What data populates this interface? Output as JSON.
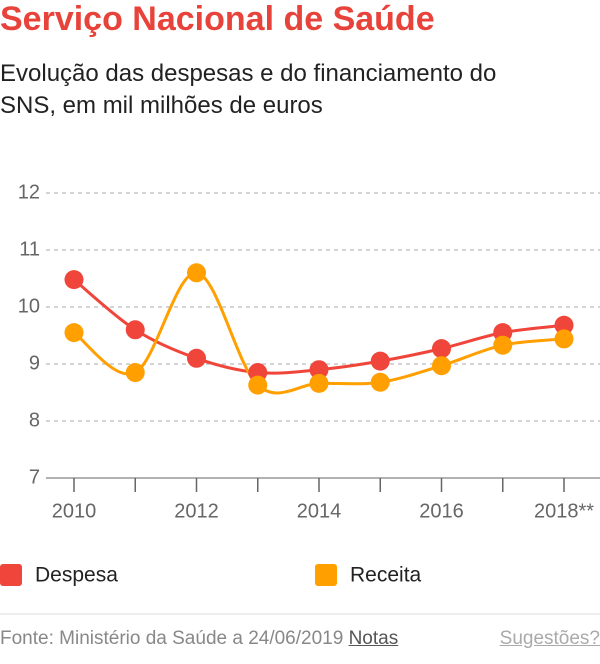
{
  "chart_data": {
    "type": "line",
    "title": "Serviço Nacional de Saúde",
    "subtitle": "Evolução das despesas e do financiamento do SNS, em mil milhões de euros",
    "categories": [
      "2010",
      null,
      "2012",
      null,
      "2014",
      null,
      "2016",
      null,
      "2018**"
    ],
    "series": [
      {
        "name": "Despesa",
        "color": "#f0453a",
        "values": [
          10.48,
          9.6,
          9.1,
          8.85,
          8.9,
          9.05,
          9.27,
          9.55,
          9.68
        ]
      },
      {
        "name": "Receita",
        "color": "#ff9f00",
        "values": [
          9.55,
          8.85,
          10.6,
          8.63,
          8.66,
          8.68,
          8.97,
          9.33,
          9.44
        ]
      }
    ],
    "ylim": [
      7,
      12
    ],
    "yticks": [
      7,
      8,
      9,
      10,
      11,
      12
    ],
    "grid": true,
    "smooth": true
  },
  "footer": {
    "source": "Fonte: Ministério da Saúde a 24/06/2019",
    "notes": "Notas",
    "suggestions": "Sugestões?"
  }
}
